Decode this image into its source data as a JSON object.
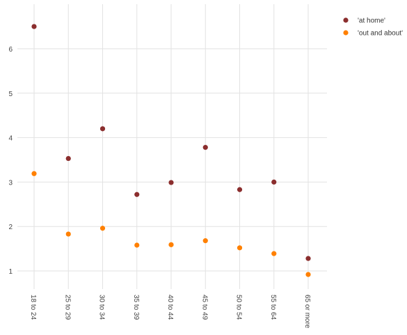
{
  "chart_data": {
    "type": "scatter",
    "categories": [
      "18 to 24",
      "25 to 29",
      "30 to 34",
      "35 to 39",
      "40 to 44",
      "45 to 49",
      "50 to 54",
      "55 to 64",
      "65 or more"
    ],
    "series": [
      {
        "name": "'at home'",
        "color": "#8b2e2e",
        "values": [
          6.5,
          3.53,
          4.2,
          2.72,
          2.99,
          3.78,
          2.83,
          3.0,
          1.28
        ]
      },
      {
        "name": "'out and about'",
        "color": "#ff8000",
        "values": [
          3.19,
          1.83,
          1.96,
          1.58,
          1.59,
          1.68,
          1.52,
          1.39,
          0.92
        ]
      }
    ],
    "y_ticks": [
      1,
      2,
      3,
      4,
      5,
      6
    ],
    "ylim": [
      0.5,
      7.0
    ],
    "grid": true,
    "legend_position": "top-right",
    "title": "",
    "xlabel": "",
    "ylabel": ""
  }
}
